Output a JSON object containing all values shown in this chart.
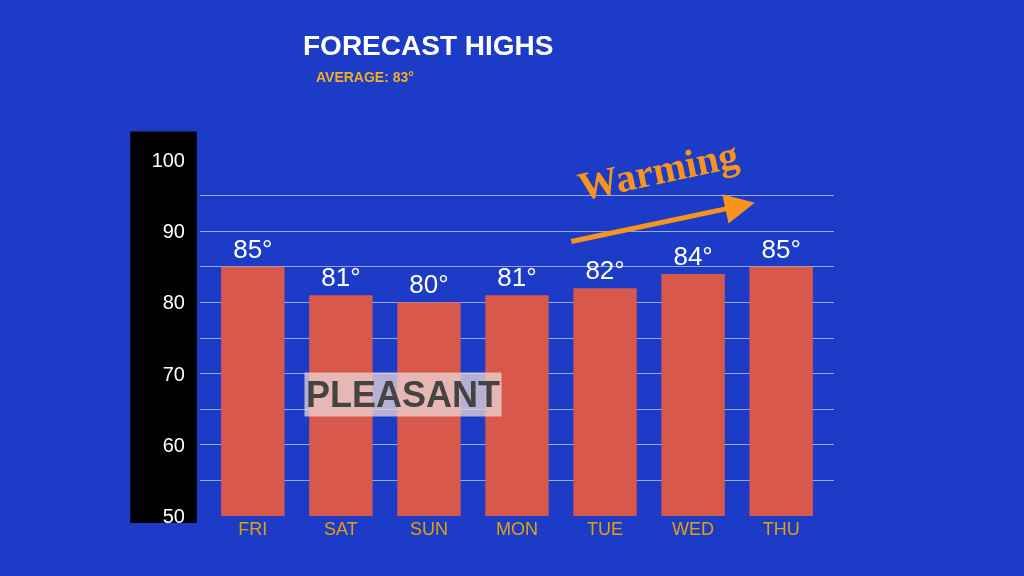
{
  "chart_data": {
    "type": "bar",
    "title": "FORECAST HIGHS",
    "subtitle": "AVERAGE: 83°",
    "categories": [
      "FRI",
      "SAT",
      "SUN",
      "MON",
      "TUE",
      "WED",
      "THU"
    ],
    "values": [
      85,
      81,
      80,
      81,
      82,
      84,
      85
    ],
    "value_labels": [
      "85°",
      "81°",
      "80°",
      "81°",
      "82°",
      "84°",
      "85°"
    ],
    "color": "#d9584c",
    "ylim": [
      50,
      100
    ],
    "yticks": [
      50,
      {
        "value": 55,
        "label": null
      },
      60,
      {
        "value": 65,
        "label": null
      },
      70,
      {
        "value": 75,
        "label": null
      },
      80,
      {
        "value": 85,
        "label": null
      },
      90,
      {
        "value": 95,
        "label": null
      },
      100
    ],
    "grid": "y",
    "legend": false,
    "annotations": [
      "Warming",
      "PLEASANT"
    ]
  }
}
